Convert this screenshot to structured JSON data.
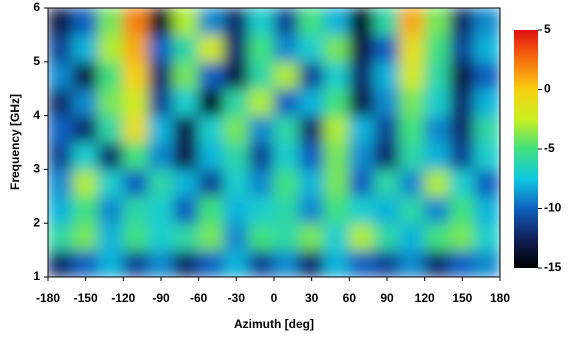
{
  "chart_data": {
    "type": "heatmap",
    "xlabel": "Azimuth [deg]",
    "ylabel": "Frequency [GHz]",
    "x": [
      -170,
      -150,
      -130,
      -110,
      -90,
      -70,
      -50,
      -30,
      -10,
      10,
      30,
      50,
      70,
      90,
      110,
      130,
      150,
      170
    ],
    "y": [
      1.25,
      1.75,
      2.25,
      2.75,
      3.25,
      3.75,
      4.25,
      4.75,
      5.25,
      5.75
    ],
    "z": [
      [
        -12,
        -10,
        -8,
        -11,
        -9,
        -12,
        -10,
        -8,
        -11,
        -9,
        -12,
        -8,
        -10,
        -11,
        -9,
        -12,
        -10,
        -9
      ],
      [
        -6,
        -4,
        -8,
        -5,
        -7,
        -6,
        -4,
        -9,
        -5,
        -6,
        -4,
        -7,
        -3,
        -6,
        -8,
        -5,
        -4,
        -7
      ],
      [
        -8,
        -5,
        -9,
        -6,
        -7,
        -10,
        -5,
        -8,
        -7,
        -6,
        -9,
        -5,
        -7,
        -8,
        -6,
        -9,
        -5,
        -8
      ],
      [
        -9,
        -3,
        -7,
        -10,
        -6,
        -8,
        -11,
        -7,
        -9,
        -5,
        -8,
        -4,
        -10,
        -6,
        -9,
        -3,
        -7,
        -10
      ],
      [
        -11,
        -7,
        -12,
        -5,
        -9,
        -13,
        -8,
        -6,
        -11,
        -7,
        -10,
        -4,
        -9,
        -12,
        -6,
        -8,
        -11,
        -7
      ],
      [
        -10,
        -12,
        -6,
        -1,
        -8,
        -13,
        -7,
        -4,
        -9,
        -6,
        -12,
        -3,
        -8,
        -11,
        -5,
        -9,
        -12,
        -6
      ],
      [
        -12,
        -9,
        -4,
        -2,
        -11,
        -7,
        -14,
        -6,
        -3,
        -10,
        -8,
        -5,
        -13,
        -9,
        -4,
        -7,
        -12,
        -8
      ],
      [
        -9,
        -13,
        -5,
        0,
        -12,
        -4,
        -10,
        -13,
        -6,
        -3,
        -11,
        -7,
        -12,
        -8,
        -2,
        -6,
        -13,
        -10
      ],
      [
        -11,
        -8,
        -3,
        1,
        -10,
        -6,
        -2,
        -12,
        -5,
        -9,
        -7,
        -4,
        -13,
        -10,
        -1,
        -5,
        -11,
        -8
      ],
      [
        -13,
        -10,
        -4,
        2,
        -14,
        -3,
        -9,
        -12,
        -7,
        -11,
        -5,
        -8,
        -14,
        -6,
        1,
        -4,
        -12,
        -9
      ]
    ],
    "xlim": [
      -180,
      180
    ],
    "xticks": [
      -180,
      -150,
      -120,
      -90,
      -60,
      -30,
      0,
      30,
      60,
      90,
      120,
      150,
      180
    ],
    "ylim": [
      1,
      6
    ],
    "yticks": [
      1,
      2,
      3,
      4,
      5,
      6
    ],
    "zlim": [
      -15,
      5
    ],
    "zticks": [
      5,
      0,
      -5,
      -10,
      -15
    ],
    "colormap": [
      "#000000",
      "#10205a",
      "#1060c0",
      "#10c8e0",
      "#40e080",
      "#c8f020",
      "#f8d010",
      "#f87010",
      "#e01010"
    ]
  }
}
